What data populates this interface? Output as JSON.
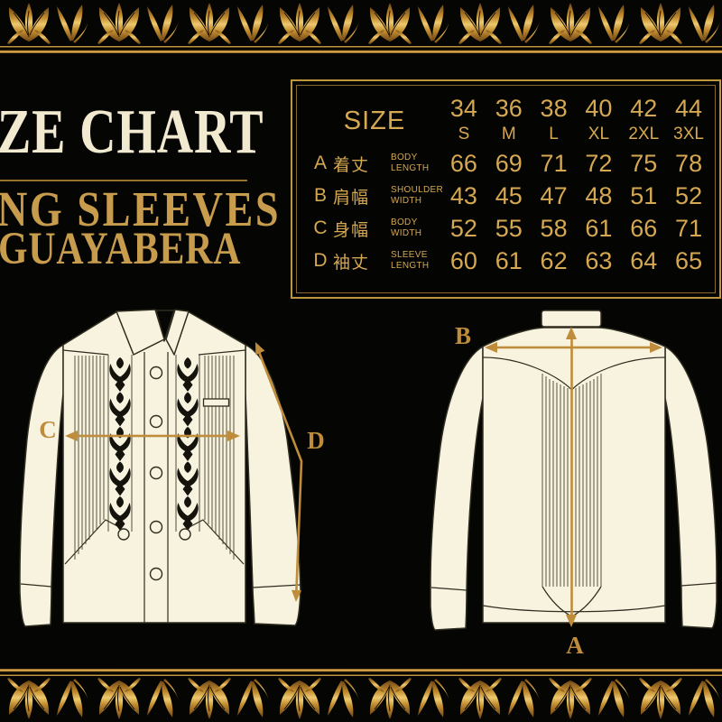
{
  "title": {
    "line1": "ZE CHART",
    "line2": "NG SLEEVES",
    "line3": "GUAYABERA"
  },
  "size_table": {
    "header_label": "SIZE",
    "columns": [
      {
        "num": "34",
        "size": "S"
      },
      {
        "num": "36",
        "size": "M"
      },
      {
        "num": "38",
        "size": "L"
      },
      {
        "num": "40",
        "size": "XL"
      },
      {
        "num": "42",
        "size": "2XL"
      },
      {
        "num": "44",
        "size": "3XL"
      }
    ],
    "rows": [
      {
        "key": "A",
        "kanji": "着丈",
        "en": [
          "BODY",
          "LENGTH"
        ],
        "values": [
          "66",
          "69",
          "71",
          "72",
          "75",
          "78"
        ]
      },
      {
        "key": "B",
        "kanji": "肩幅",
        "en": [
          "SHOULDER",
          "WIDTH"
        ],
        "values": [
          "43",
          "45",
          "47",
          "48",
          "51",
          "52"
        ]
      },
      {
        "key": "C",
        "kanji": "身幅",
        "en": [
          "BODY",
          "WIDTH"
        ],
        "values": [
          "52",
          "55",
          "58",
          "61",
          "66",
          "71"
        ]
      },
      {
        "key": "D",
        "kanji": "袖丈",
        "en": [
          "SLEEVE",
          "LENGTH"
        ],
        "values": [
          "60",
          "61",
          "62",
          "63",
          "64",
          "65"
        ]
      }
    ]
  },
  "measure_labels": {
    "front_chest": "C",
    "front_sleeve": "D",
    "back_shoulder": "B",
    "back_length": "A"
  },
  "colors": {
    "background": "#050504",
    "gold_text": "#D5A851",
    "title_cream": "#F2EAD0",
    "subtitle_gold": "#C89C4D",
    "arrow_gold": "#BE8C3B",
    "table_border_outer": "#BD953F",
    "table_border_inner": "#8a672c",
    "shirt_fill": "#F8F3DF",
    "shirt_outline": "#2F2D20",
    "embroidery": "#14130c"
  },
  "chart_data": {
    "type": "table",
    "title": "ZE CHART — NG SLEEVES GUAYABERA (size chart, cm)",
    "columns": [
      "34 / S",
      "36 / M",
      "38 / L",
      "40 / XL",
      "42 / 2XL",
      "44 / 3XL"
    ],
    "rows": [
      {
        "key": "A",
        "label_jp": "着丈",
        "label_en": "BODY LENGTH",
        "values": [
          66,
          69,
          71,
          72,
          75,
          78
        ]
      },
      {
        "key": "B",
        "label_jp": "肩幅",
        "label_en": "SHOULDER WIDTH",
        "values": [
          43,
          45,
          47,
          48,
          51,
          52
        ]
      },
      {
        "key": "C",
        "label_jp": "身幅",
        "label_en": "BODY WIDTH",
        "values": [
          52,
          55,
          58,
          61,
          66,
          71
        ]
      },
      {
        "key": "D",
        "label_jp": "袖丈",
        "label_en": "SLEEVE LENGTH",
        "values": [
          60,
          61,
          62,
          63,
          64,
          65
        ]
      }
    ]
  }
}
